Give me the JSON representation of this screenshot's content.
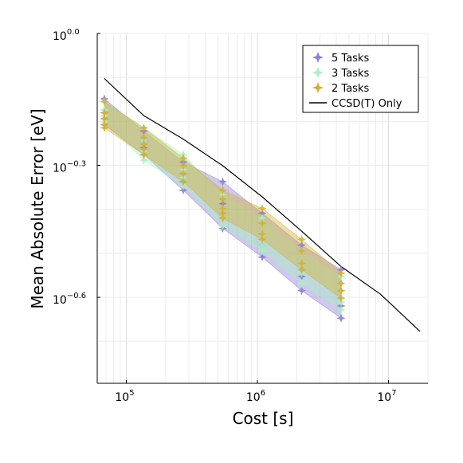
{
  "chart_data": {
    "type": "scatter",
    "title": "",
    "xlabel": "Cost [s]",
    "ylabel": "Mean Absolute Error [eV]",
    "x_scale": "log10",
    "y_scale": "log10",
    "xlim": [
      60000,
      20000000
    ],
    "ylim": [
      0.16,
      1.0
    ],
    "grid": true,
    "legend_position": "top-right",
    "x_ticks": [
      {
        "value": 100000,
        "base": "10",
        "exp": "5"
      },
      {
        "value": 1000000,
        "base": "10",
        "exp": "6"
      },
      {
        "value": 10000000,
        "base": "10",
        "exp": "7"
      }
    ],
    "y_ticks": [
      {
        "value": 1.0,
        "base": "10",
        "exp": "0.0"
      },
      {
        "value": 0.501,
        "base": "10",
        "exp": "−0.3"
      },
      {
        "value": 0.251,
        "base": "10",
        "exp": "−0.6"
      }
    ],
    "series": [
      {
        "name": "5 Tasks",
        "kind": "scatter_band",
        "color": "#8b7fd4",
        "points": [
          {
            "x": 68000,
            "y": [
              0.71,
              0.66,
              0.64,
              0.62
            ]
          },
          {
            "x": 136000,
            "y": [
              0.6,
              0.57,
              0.55,
              0.53
            ]
          },
          {
            "x": 272000,
            "y": [
              0.51,
              0.48,
              0.46,
              0.44
            ]
          },
          {
            "x": 544000,
            "y": [
              0.46,
              0.41,
              0.38,
              0.36
            ]
          },
          {
            "x": 1088000,
            "y": [
              0.39,
              0.35,
              0.33,
              0.31
            ]
          },
          {
            "x": 2176000,
            "y": [
              0.33,
              0.3,
              0.28,
              0.26
            ]
          },
          {
            "x": 4352000,
            "y": [
              0.29,
              0.26,
              0.24,
              0.225
            ]
          }
        ]
      },
      {
        "name": "3 Tasks",
        "kind": "scatter_band",
        "color": "#a8f0c0",
        "points": [
          {
            "x": 68000,
            "y": [
              0.7,
              0.67,
              0.65,
              0.63
            ]
          },
          {
            "x": 136000,
            "y": [
              0.61,
              0.57,
              0.54,
              0.515
            ]
          },
          {
            "x": 272000,
            "y": [
              0.53,
              0.49,
              0.47,
              0.45
            ]
          },
          {
            "x": 544000,
            "y": [
              0.43,
              0.4,
              0.38,
              0.365
            ]
          },
          {
            "x": 1088000,
            "y": [
              0.38,
              0.35,
              0.33,
              0.32
            ]
          },
          {
            "x": 2176000,
            "y": [
              0.32,
              0.3,
              0.285,
              0.27
            ]
          },
          {
            "x": 4352000,
            "y": [
              0.28,
              0.26,
              0.245,
              0.235
            ]
          }
        ]
      },
      {
        "name": "2 Tasks",
        "kind": "scatter_band",
        "color": "#d4b030",
        "points": [
          {
            "x": 68000,
            "y": [
              0.7,
              0.66,
              0.64,
              0.62,
              0.61
            ]
          },
          {
            "x": 136000,
            "y": [
              0.61,
              0.58,
              0.56,
              0.545,
              0.53
            ]
          },
          {
            "x": 272000,
            "y": [
              0.52,
              0.5,
              0.48,
              0.46
            ]
          },
          {
            "x": 544000,
            "y": [
              0.44,
              0.42,
              0.4,
              0.39,
              0.38
            ]
          },
          {
            "x": 1088000,
            "y": [
              0.4,
              0.37,
              0.35,
              0.34
            ]
          },
          {
            "x": 2176000,
            "y": [
              0.34,
              0.32,
              0.3,
              0.29
            ]
          },
          {
            "x": 4352000,
            "y": [
              0.285,
              0.27,
              0.26,
              0.25
            ]
          }
        ]
      },
      {
        "name": "CCSD(T) Only",
        "kind": "line",
        "color": "#000000",
        "x": [
          68000,
          136000,
          272000,
          544000,
          1088000,
          2176000,
          4352000,
          8704000,
          17408000
        ],
        "y": [
          0.79,
          0.65,
          0.575,
          0.5,
          0.425,
          0.355,
          0.295,
          0.255,
          0.21
        ]
      }
    ]
  }
}
